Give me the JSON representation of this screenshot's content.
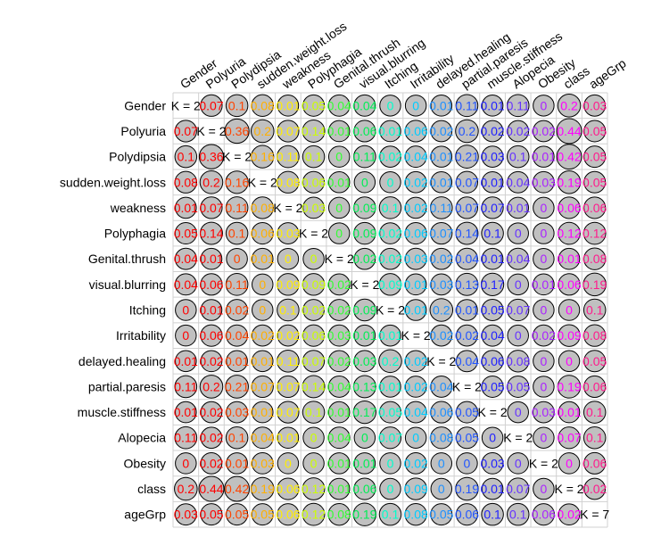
{
  "chart_data": {
    "type": "heatmap",
    "variables": [
      "Gender",
      "Polyuria",
      "Polydipsia",
      "sudden.weight.loss",
      "weakness",
      "Polyphagia",
      "Genital.thrush",
      "visual.blurring",
      "Itching",
      "Irritability",
      "delayed.healing",
      "partial.paresis",
      "muscle.stiffness",
      "Alopecia",
      "Obesity",
      "class",
      "ageGrp"
    ],
    "diagonal": [
      "K = 2",
      "K = 2",
      "K = 2",
      "K = 2",
      "K = 2",
      "K = 2",
      "K = 2",
      "K = 2",
      "K = 2",
      "K = 2",
      "K = 2",
      "K = 2",
      "K = 2",
      "K = 2",
      "K = 2",
      "K = 2",
      "K = 7"
    ],
    "values": [
      [
        null,
        0.07,
        0.1,
        0.08,
        0.01,
        0.05,
        0.04,
        0.04,
        0,
        0,
        0.01,
        0.11,
        0.01,
        0.11,
        0,
        0.2,
        0.03
      ],
      [
        0.07,
        null,
        0.36,
        0.2,
        0.07,
        0.14,
        0.01,
        0.06,
        0.01,
        0.06,
        0.02,
        0.2,
        0.02,
        0.02,
        0.02,
        0.44,
        0.05
      ],
      [
        0.1,
        0.36,
        null,
        0.16,
        0.11,
        0.1,
        0,
        0.11,
        0.02,
        0.04,
        0.01,
        0.21,
        0.03,
        0.1,
        0.01,
        0.42,
        0.05
      ],
      [
        0.08,
        0.2,
        0.16,
        null,
        0.08,
        0.06,
        0.01,
        0,
        0,
        0.02,
        0.01,
        0.07,
        0.01,
        0.04,
        0.03,
        0.19,
        0.05
      ],
      [
        0.01,
        0.07,
        0.11,
        0.08,
        null,
        0.03,
        0,
        0.09,
        0.1,
        0.02,
        0.11,
        0.07,
        0.07,
        0.01,
        0,
        0.06,
        0.06
      ],
      [
        0.05,
        0.14,
        0.1,
        0.06,
        0.03,
        null,
        0,
        0.09,
        0.02,
        0.06,
        0.07,
        0.14,
        0.1,
        0,
        0,
        0.12,
        0.12
      ],
      [
        0.04,
        0.01,
        0,
        0.01,
        0,
        0,
        null,
        0.02,
        0.02,
        0.03,
        0.02,
        0.04,
        0.01,
        0.04,
        0,
        0.01,
        0.08
      ],
      [
        0.04,
        0.06,
        0.11,
        0,
        0.09,
        0.09,
        0.02,
        null,
        0.09,
        0.01,
        0.03,
        0.13,
        0.17,
        0,
        0.01,
        0.06,
        0.19
      ],
      [
        0,
        0.01,
        0.02,
        0,
        0.1,
        0.02,
        0.02,
        0.09,
        null,
        0.01,
        0.2,
        0.01,
        0.05,
        0.07,
        0,
        0,
        0.1
      ],
      [
        0,
        0.06,
        0.04,
        0.02,
        0.02,
        0.06,
        0.03,
        0.01,
        0.01,
        null,
        0.02,
        0.02,
        0.04,
        0,
        0.02,
        0.09,
        0.08
      ],
      [
        0.01,
        0.02,
        0.01,
        0.01,
        0.11,
        0.07,
        0.02,
        0.03,
        0.2,
        0.02,
        null,
        0.04,
        0.06,
        0.08,
        0,
        0,
        0.05
      ],
      [
        0.11,
        0.2,
        0.21,
        0.07,
        0.07,
        0.14,
        0.04,
        0.13,
        0.01,
        0.02,
        0.04,
        null,
        0.05,
        0.05,
        0,
        0.19,
        0.06
      ],
      [
        0.01,
        0.02,
        0.03,
        0.01,
        0.07,
        0.1,
        0.01,
        0.17,
        0.05,
        0.04,
        0.06,
        0.05,
        null,
        0,
        0.03,
        0.01,
        0.1
      ],
      [
        0.11,
        0.02,
        0.1,
        0.04,
        0.01,
        0,
        0.04,
        0,
        0.07,
        0,
        0.08,
        0.05,
        0,
        null,
        0,
        0.07,
        0.1
      ],
      [
        0,
        0.02,
        0.01,
        0.03,
        0,
        0,
        0.01,
        0.01,
        0,
        0.02,
        0,
        0,
        0.03,
        0,
        null,
        0,
        0.06
      ],
      [
        0.2,
        0.44,
        0.42,
        0.19,
        0.06,
        0.12,
        0.01,
        0.06,
        0,
        0.09,
        0,
        0.19,
        0.01,
        0.07,
        0,
        null,
        0.02
      ],
      [
        0.03,
        0.05,
        0.05,
        0.05,
        0.06,
        0.12,
        0.08,
        0.19,
        0.1,
        0.08,
        0.05,
        0.06,
        0.1,
        0.1,
        0.06,
        0.02,
        null
      ]
    ],
    "value_labels": [
      [
        "",
        "0.07",
        "0.1",
        "0.08",
        "0.01",
        "0.05",
        "0.04",
        "0.04",
        "0",
        "0",
        "0.01",
        "0.11",
        "0.01",
        "0.11",
        "0",
        "0.2",
        "0.03"
      ],
      [
        "0.07",
        "",
        "0.36",
        "0.2",
        "0.07",
        "0.14",
        "0.01",
        "0.06",
        "0.01",
        "0.06",
        "0.02",
        "0.2",
        "0.02",
        "0.02",
        "0.02",
        "0.44",
        "0.05"
      ],
      [
        "0.1",
        "0.36",
        "",
        "0.16",
        "0.11",
        "0.1",
        "0",
        "0.11",
        "0.02",
        "0.04",
        "0.01",
        "0.21",
        "0.03",
        "0.1",
        "0.01",
        "0.42",
        "0.05"
      ],
      [
        "0.08",
        "0.2",
        "0.16",
        "",
        "0.08",
        "0.06",
        "0.01",
        "0",
        "0",
        "0.02",
        "0.01",
        "0.07",
        "0.01",
        "0.04",
        "0.03",
        "0.19",
        "0.05"
      ],
      [
        "0.01",
        "0.07",
        "0.11",
        "0.08",
        "",
        "0.03",
        "0",
        "0.09",
        "0.1",
        "0.02",
        "0.11",
        "0.07",
        "0.07",
        "0.01",
        "0",
        "0.06",
        "0.06"
      ],
      [
        "0.05",
        "0.14",
        "0.1",
        "0.06",
        "0.03",
        "",
        "0",
        "0.09",
        "0.02",
        "0.06",
        "0.07",
        "0.14",
        "0.1",
        "0",
        "0",
        "0.12",
        "0.12"
      ],
      [
        "0.04",
        "0.01",
        "0",
        "0.01",
        "0",
        "0",
        "",
        "0.02",
        "0.02",
        "0.03",
        "0.02",
        "0.04",
        "0.01",
        "0.04",
        "0",
        "0.01",
        "0.08"
      ],
      [
        "0.04",
        "0.06",
        "0.11",
        "0",
        "0.09",
        "0.09",
        "0.02",
        "",
        "0.09",
        "0.01",
        "0.03",
        "0.13",
        "0.17",
        "0",
        "0.01",
        "0.06",
        "0.19"
      ],
      [
        "0",
        "0.01",
        "0.02",
        "0",
        "0.1",
        "0.02",
        "0.02",
        "0.09",
        "",
        "0.01",
        "0.2",
        "0.01",
        "0.05",
        "0.07",
        "0",
        "0",
        "0.1"
      ],
      [
        "0",
        "0.06",
        "0.04",
        "0.02",
        "0.02",
        "0.06",
        "0.03",
        "0.01",
        "0.01",
        "",
        "0.02",
        "0.02",
        "0.04",
        "0",
        "0.02",
        "0.09",
        "0.08"
      ],
      [
        "0.01",
        "0.02",
        "0.01",
        "0.01",
        "0.11",
        "0.07",
        "0.02",
        "0.03",
        "0.2",
        "0.02",
        "",
        "0.04",
        "0.06",
        "0.08",
        "0",
        "0",
        "0.05"
      ],
      [
        "0.11",
        "0.2",
        "0.21",
        "0.07",
        "0.07",
        "0.14",
        "0.04",
        "0.13",
        "0.01",
        "0.02",
        "0.04",
        "",
        "0.05",
        "0.05",
        "0",
        "0.19",
        "0.06"
      ],
      [
        "0.01",
        "0.02",
        "0.03",
        "0.01",
        "0.07",
        "0.1",
        "0.01",
        "0.17",
        "0.05",
        "0.04",
        "0.06",
        "0.05",
        "",
        "0",
        "0.03",
        "0.01",
        "0.1"
      ],
      [
        "0.11",
        "0.02",
        "0.1",
        "0.04",
        "0.01",
        "0",
        "0.04",
        "0",
        "0.07",
        "0",
        "0.08",
        "0.05",
        "0",
        "",
        "0",
        "0.07",
        "0.1"
      ],
      [
        "0",
        "0.02",
        "0.01",
        "0.03",
        "0",
        "0",
        "0.01",
        "0.01",
        "0",
        "0.02",
        "0",
        "0",
        "0.03",
        "0",
        "",
        "0",
        "0.06"
      ],
      [
        "0.2",
        "0.44",
        "0.42",
        "0.19",
        "0.06",
        "0.12",
        "0.01",
        "0.06",
        "0",
        "0.09",
        "0",
        "0.19",
        "0.01",
        "0.07",
        "0",
        "",
        "0.02"
      ],
      [
        "0.03",
        "0.05",
        "0.05",
        "0.05",
        "0.06",
        "0.12",
        "0.08",
        "0.19",
        "0.1",
        "0.08",
        "0.05",
        "0.06",
        "0.1",
        "0.1",
        "0.06",
        "0.02",
        ""
      ]
    ],
    "row_label_colors": [
      "#ff0000",
      "#ff0000",
      "#ff4400",
      "#ffb000",
      "#ffee00",
      "#ccff00",
      "#33ff33",
      "#00ee55",
      "#00ffcc",
      "#00ccff",
      "#1e90ff",
      "#2255ff",
      "#2222ff",
      "#6633ff",
      "#aa22ff",
      "#ff00ff",
      "#ff1a8c"
    ],
    "circle_fill": "#c0c0c0",
    "circle_stroke": "#000000",
    "grid": true,
    "ylim": [
      0,
      1
    ]
  }
}
